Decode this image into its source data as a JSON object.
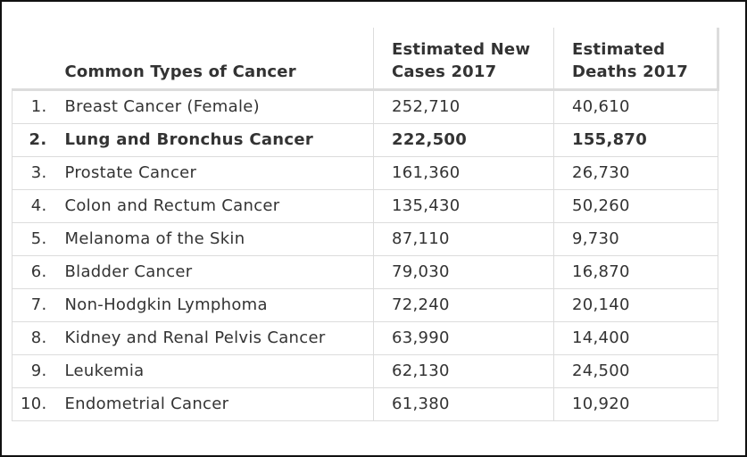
{
  "table": {
    "headers": {
      "number": "",
      "type": "Common Types of Cancer",
      "new_cases": "Estimated New Cases 2017",
      "deaths": "Estimated Deaths 2017"
    },
    "rows": [
      {
        "rank": "1.",
        "type": "Breast Cancer (Female)",
        "new_cases": "252,710",
        "deaths": "40,610",
        "bold": false
      },
      {
        "rank": "2.",
        "type": "Lung and Bronchus Cancer",
        "new_cases": "222,500",
        "deaths": "155,870",
        "bold": true
      },
      {
        "rank": "3.",
        "type": "Prostate Cancer",
        "new_cases": "161,360",
        "deaths": "26,730",
        "bold": false
      },
      {
        "rank": "4.",
        "type": "Colon and Rectum Cancer",
        "new_cases": "135,430",
        "deaths": "50,260",
        "bold": false
      },
      {
        "rank": "5.",
        "type": "Melanoma of the Skin",
        "new_cases": "87,110",
        "deaths": "9,730",
        "bold": false
      },
      {
        "rank": "6.",
        "type": "Bladder Cancer",
        "new_cases": "79,030",
        "deaths": "16,870",
        "bold": false
      },
      {
        "rank": "7.",
        "type": "Non-Hodgkin Lymphoma",
        "new_cases": "72,240",
        "deaths": "20,140",
        "bold": false
      },
      {
        "rank": "8.",
        "type": "Kidney and Renal Pelvis Cancer",
        "new_cases": "63,990",
        "deaths": "14,400",
        "bold": false
      },
      {
        "rank": "9.",
        "type": "Leukemia",
        "new_cases": "62,130",
        "deaths": "24,500",
        "bold": false
      },
      {
        "rank": "10.",
        "type": "Endometrial Cancer",
        "new_cases": "61,380",
        "deaths": "10,920",
        "bold": false
      }
    ]
  }
}
